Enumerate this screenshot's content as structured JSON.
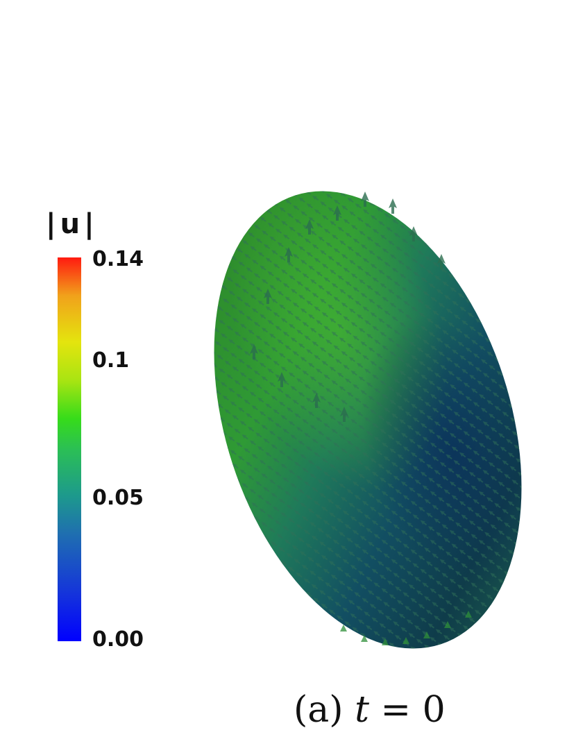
{
  "colorbar": {
    "title": "|u|",
    "ticks": [
      "0.14",
      "0.1",
      "0.05",
      "0.00"
    ],
    "colors": [
      "#0000ff",
      "#1a55c8",
      "#1e9a8f",
      "#2bd12a",
      "#a6e60f",
      "#e8e20c",
      "#f29a1a",
      "#ff1e10"
    ]
  },
  "surface": {
    "top_color": "#2f8f2a",
    "bottom_color": "#0e3c4d",
    "arrow_color": "#3a7f58"
  },
  "caption": {
    "label": "(a)",
    "variable": "t",
    "equals": "=",
    "value": "0"
  }
}
